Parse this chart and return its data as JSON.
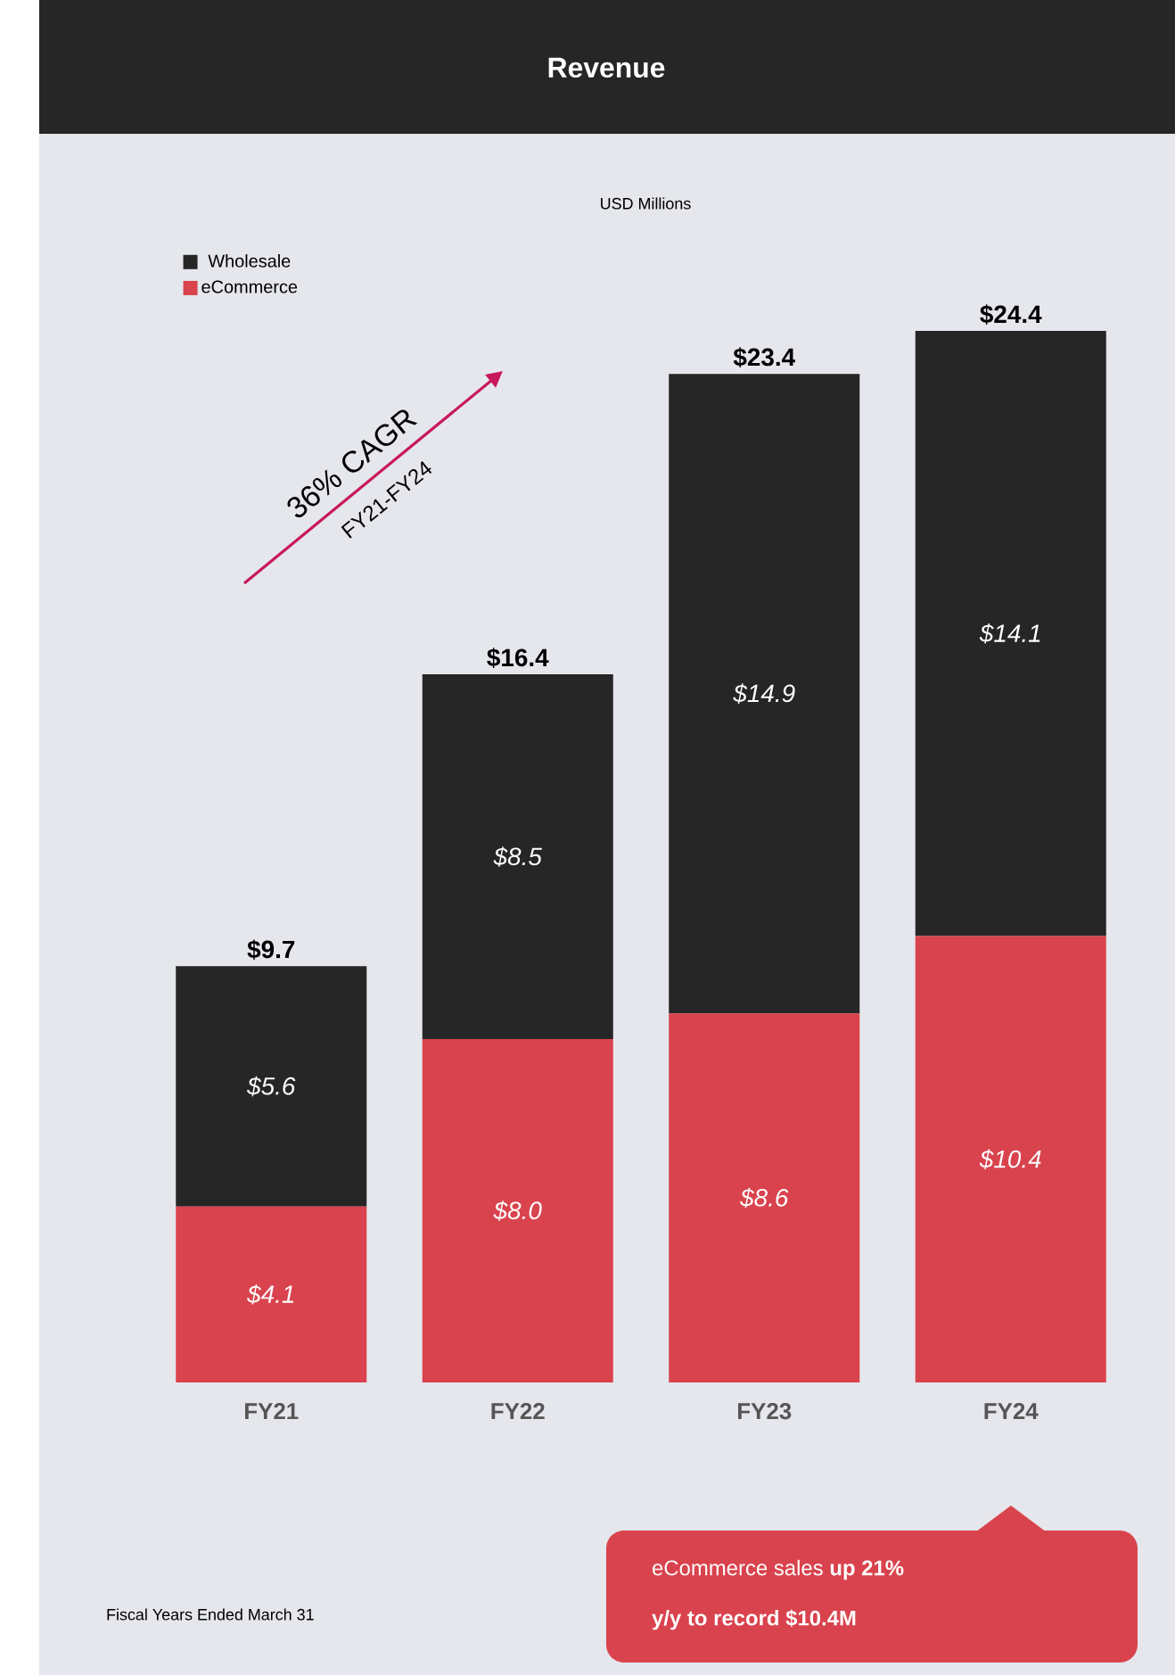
{
  "chart_data": {
    "type": "bar",
    "stacked": true,
    "title": "Revenue",
    "subtitle": "USD Millions",
    "categories": [
      "FY21",
      "FY22",
      "FY23",
      "FY24"
    ],
    "series": [
      {
        "name": "eCommerce",
        "color": "#d9434d",
        "values": [
          4.1,
          8.0,
          8.6,
          10.4
        ],
        "value_labels": [
          "$4.1",
          "$8.0",
          "$8.6",
          "$10.4"
        ]
      },
      {
        "name": "Wholesale",
        "color": "#262626",
        "values": [
          5.6,
          8.5,
          14.9,
          14.1
        ],
        "value_labels": [
          "$5.6",
          "$8.5",
          "$14.9",
          "$14.1"
        ]
      }
    ],
    "totals": [
      "$9.7",
      "$16.4",
      "$23.4",
      "$24.4"
    ],
    "legend": "top left",
    "annotations": [
      "36% CAGR",
      "FY21-FY24",
      "Fiscal Years Ended March 31",
      "eCommerce sales **up 21%**",
      "**y/y to record $10.4M**"
    ]
  }
}
